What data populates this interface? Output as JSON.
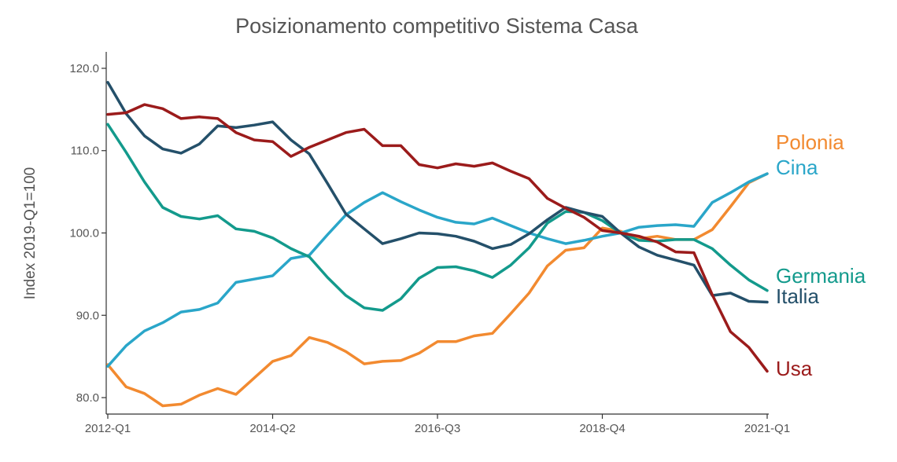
{
  "chart_data": {
    "type": "line",
    "title": "Posizionamento competitivo Sistema Casa",
    "ylabel": "Index 2019-Q1=100",
    "xlabel": "",
    "ylim": [
      78,
      122
    ],
    "yticks": [
      80,
      90,
      100,
      110,
      120
    ],
    "ytick_labels": [
      "80.0",
      "90.0",
      "100.0",
      "110.0",
      "120.0"
    ],
    "x": [
      "2012-Q1",
      "2012-Q2",
      "2012-Q3",
      "2012-Q4",
      "2013-Q1",
      "2013-Q2",
      "2013-Q3",
      "2013-Q4",
      "2014-Q1",
      "2014-Q2",
      "2014-Q3",
      "2014-Q4",
      "2015-Q1",
      "2015-Q2",
      "2015-Q3",
      "2015-Q4",
      "2016-Q1",
      "2016-Q2",
      "2016-Q3",
      "2016-Q4",
      "2017-Q1",
      "2017-Q2",
      "2017-Q3",
      "2017-Q4",
      "2018-Q1",
      "2018-Q2",
      "2018-Q3",
      "2018-Q4",
      "2019-Q1",
      "2019-Q2",
      "2019-Q3",
      "2019-Q4",
      "2020-Q1",
      "2020-Q2",
      "2020-Q3",
      "2020-Q4",
      "2021-Q1"
    ],
    "xticks": [
      "2012-Q1",
      "2014-Q2",
      "2016-Q3",
      "2018-Q4",
      "2021-Q1"
    ],
    "grid": false,
    "legend": "labels at line ends (right)",
    "series": [
      {
        "name": "Polonia",
        "color": "#f28a30",
        "values": [
          84.0,
          81.3,
          80.5,
          79.0,
          79.2,
          80.3,
          81.1,
          80.4,
          82.4,
          84.4,
          85.1,
          87.3,
          86.7,
          85.6,
          84.1,
          84.4,
          84.5,
          85.4,
          86.8,
          86.8,
          87.5,
          87.8,
          90.2,
          92.7,
          96.0,
          97.9,
          98.2,
          100.6,
          100.2,
          99.3,
          99.6,
          99.2,
          99.2,
          100.4,
          103.2,
          106.1,
          107.2
        ]
      },
      {
        "name": "Cina",
        "color": "#2aa6c9",
        "values": [
          83.8,
          86.3,
          88.1,
          89.1,
          90.4,
          90.7,
          91.5,
          94.0,
          94.4,
          94.8,
          96.9,
          97.3,
          99.8,
          102.2,
          103.7,
          104.9,
          103.8,
          102.8,
          101.9,
          101.3,
          101.1,
          101.8,
          100.9,
          100.0,
          99.3,
          98.7,
          99.1,
          99.6,
          100.0,
          100.7,
          100.9,
          101.0,
          100.8,
          103.7,
          104.9,
          106.2,
          107.2
        ]
      },
      {
        "name": "Germania",
        "color": "#139a8c",
        "values": [
          113.2,
          109.8,
          106.2,
          103.1,
          102.0,
          101.7,
          102.1,
          100.5,
          100.2,
          99.4,
          98.1,
          97.1,
          94.6,
          92.4,
          90.9,
          90.6,
          92.0,
          94.5,
          95.8,
          95.9,
          95.4,
          94.6,
          96.1,
          98.2,
          101.2,
          102.6,
          102.5,
          101.5,
          100.0,
          99.1,
          99.0,
          99.2,
          99.2,
          98.1,
          96.1,
          94.3,
          93.0
        ]
      },
      {
        "name": "Italia",
        "color": "#24506a",
        "values": [
          118.3,
          114.5,
          111.8,
          110.2,
          109.7,
          110.8,
          113.0,
          112.8,
          113.1,
          113.5,
          111.3,
          109.6,
          106.0,
          102.3,
          100.5,
          98.7,
          99.3,
          100.0,
          99.9,
          99.6,
          99.0,
          98.1,
          98.6,
          99.9,
          101.6,
          103.1,
          102.5,
          102.0,
          100.0,
          98.3,
          97.3,
          96.7,
          96.1,
          92.4,
          92.7,
          91.7,
          91.6
        ]
      },
      {
        "name": "Usa",
        "color": "#9b1b1b",
        "values": [
          114.4,
          114.6,
          115.6,
          115.1,
          113.9,
          114.1,
          113.9,
          112.2,
          111.3,
          111.1,
          109.3,
          110.4,
          111.3,
          112.2,
          112.6,
          110.6,
          110.6,
          108.3,
          107.9,
          108.4,
          108.1,
          108.5,
          107.5,
          106.6,
          104.2,
          103.0,
          101.9,
          100.3,
          100.0,
          99.6,
          98.9,
          97.7,
          97.6,
          92.5,
          88.0,
          86.1,
          83.2
        ]
      }
    ]
  }
}
